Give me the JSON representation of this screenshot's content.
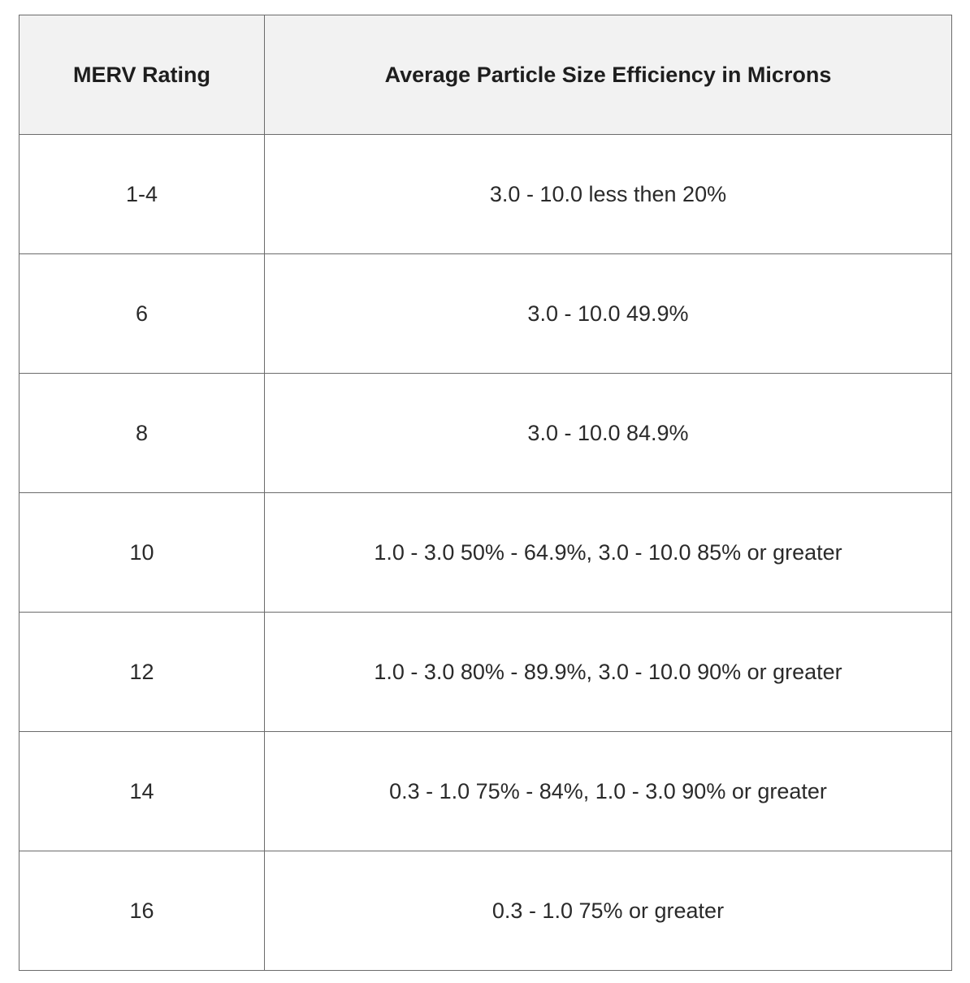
{
  "table": {
    "headers": [
      "MERV Rating",
      "Average Particle Size Efficiency in Microns"
    ],
    "rows": [
      [
        "1-4",
        "3.0 - 10.0 less then 20%"
      ],
      [
        "6",
        "3.0 - 10.0 49.9%"
      ],
      [
        "8",
        "3.0 - 10.0 84.9%"
      ],
      [
        "10",
        "1.0 - 3.0 50% - 64.9%, 3.0 - 10.0 85% or greater"
      ],
      [
        "12",
        "1.0 - 3.0 80% - 89.9%, 3.0 - 10.0 90% or greater"
      ],
      [
        "14",
        "0.3 - 1.0 75% - 84%, 1.0 - 3.0 90% or greater"
      ],
      [
        "16",
        "0.3 - 1.0 75% or greater"
      ]
    ],
    "colors": {
      "header_background": "#f2f2f2",
      "border": "#6b6b6b"
    }
  }
}
